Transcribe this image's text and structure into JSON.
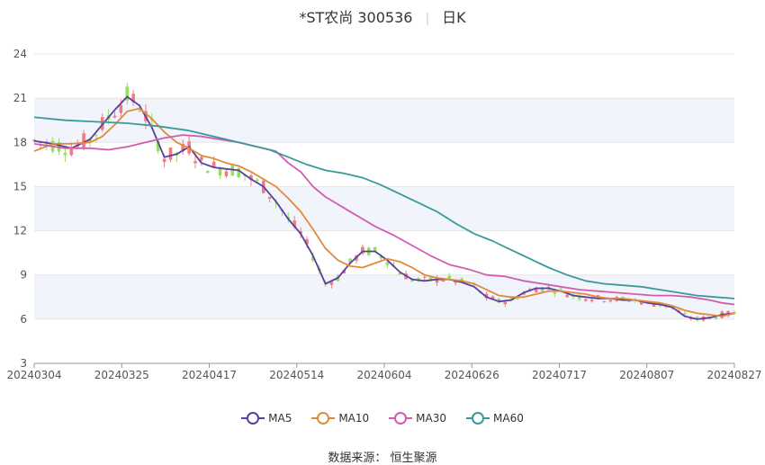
{
  "header": {
    "title": "*ST农尚 300536",
    "period": "日K"
  },
  "source": "数据来源： 恒生聚源",
  "colors": {
    "up": "#f07c82",
    "down": "#93e15b",
    "ma5": "#5b3f9e",
    "ma10": "#e28a3c",
    "ma30": "#d45bb0",
    "ma60": "#3a9a9a",
    "band": "#f1f4fb",
    "grid": "#e6e6e6"
  },
  "chart_data": {
    "type": "candlestick",
    "ylim": [
      3,
      24
    ],
    "yticks": [
      3,
      6,
      9,
      12,
      15,
      18,
      21,
      24
    ],
    "xticks": [
      "20240304",
      "20240325",
      "20240417",
      "20240514",
      "20240604",
      "20240626",
      "20240717",
      "20240807",
      "20240827"
    ],
    "legend": [
      "MA5",
      "MA10",
      "MA30",
      "MA60"
    ],
    "legend_position": "bottom",
    "series": [
      {
        "name": "MA5",
        "values": [
          [
            0,
            18.1
          ],
          [
            3,
            17.9
          ],
          [
            6,
            17.6
          ],
          [
            9,
            18.2
          ],
          [
            11,
            19.2
          ],
          [
            13,
            20.2
          ],
          [
            15,
            21.1
          ],
          [
            17,
            20.5
          ],
          [
            19,
            19.0
          ],
          [
            21,
            17.0
          ],
          [
            23,
            17.2
          ],
          [
            25,
            17.7
          ],
          [
            27,
            16.6
          ],
          [
            29,
            16.3
          ],
          [
            31,
            16.2
          ],
          [
            33,
            16.1
          ],
          [
            35,
            15.5
          ],
          [
            37,
            15.0
          ],
          [
            39,
            14.0
          ],
          [
            41,
            12.8
          ],
          [
            43,
            11.8
          ],
          [
            45,
            10.3
          ],
          [
            47,
            8.4
          ],
          [
            49,
            8.8
          ],
          [
            51,
            9.8
          ],
          [
            53,
            10.6
          ],
          [
            55,
            10.6
          ],
          [
            57,
            10.0
          ],
          [
            59,
            9.2
          ],
          [
            61,
            8.7
          ],
          [
            63,
            8.6
          ],
          [
            65,
            8.7
          ],
          [
            67,
            8.7
          ],
          [
            69,
            8.5
          ],
          [
            71,
            8.2
          ],
          [
            73,
            7.5
          ],
          [
            75,
            7.2
          ],
          [
            77,
            7.3
          ],
          [
            79,
            7.8
          ],
          [
            81,
            8.1
          ],
          [
            83,
            8.1
          ],
          [
            85,
            7.9
          ],
          [
            87,
            7.6
          ],
          [
            89,
            7.5
          ],
          [
            91,
            7.4
          ],
          [
            93,
            7.4
          ],
          [
            95,
            7.3
          ],
          [
            97,
            7.3
          ],
          [
            99,
            7.1
          ],
          [
            101,
            7.0
          ],
          [
            103,
            6.8
          ],
          [
            105,
            6.2
          ],
          [
            107,
            6.0
          ],
          [
            109,
            6.1
          ],
          [
            111,
            6.3
          ],
          [
            113,
            6.4
          ]
        ]
      },
      {
        "name": "MA10",
        "values": [
          [
            0,
            17.4
          ],
          [
            3,
            17.9
          ],
          [
            6,
            17.9
          ],
          [
            9,
            18.0
          ],
          [
            11,
            18.4
          ],
          [
            13,
            19.2
          ],
          [
            15,
            20.1
          ],
          [
            17,
            20.3
          ],
          [
            19,
            19.6
          ],
          [
            21,
            18.7
          ],
          [
            23,
            18.0
          ],
          [
            25,
            17.6
          ],
          [
            27,
            17.1
          ],
          [
            29,
            16.9
          ],
          [
            31,
            16.6
          ],
          [
            33,
            16.4
          ],
          [
            35,
            16.0
          ],
          [
            37,
            15.5
          ],
          [
            39,
            15.0
          ],
          [
            41,
            14.2
          ],
          [
            43,
            13.3
          ],
          [
            45,
            12.1
          ],
          [
            47,
            10.8
          ],
          [
            49,
            10.0
          ],
          [
            51,
            9.6
          ],
          [
            53,
            9.5
          ],
          [
            55,
            9.8
          ],
          [
            57,
            10.1
          ],
          [
            59,
            9.9
          ],
          [
            61,
            9.5
          ],
          [
            63,
            9.0
          ],
          [
            65,
            8.8
          ],
          [
            67,
            8.7
          ],
          [
            69,
            8.6
          ],
          [
            71,
            8.4
          ],
          [
            73,
            8.0
          ],
          [
            75,
            7.6
          ],
          [
            77,
            7.5
          ],
          [
            79,
            7.5
          ],
          [
            81,
            7.7
          ],
          [
            83,
            7.9
          ],
          [
            85,
            7.9
          ],
          [
            87,
            7.8
          ],
          [
            89,
            7.7
          ],
          [
            91,
            7.5
          ],
          [
            93,
            7.4
          ],
          [
            95,
            7.4
          ],
          [
            97,
            7.3
          ],
          [
            99,
            7.2
          ],
          [
            101,
            7.1
          ],
          [
            103,
            6.9
          ],
          [
            105,
            6.6
          ],
          [
            107,
            6.4
          ],
          [
            109,
            6.3
          ],
          [
            111,
            6.2
          ],
          [
            113,
            6.4
          ]
        ]
      },
      {
        "name": "MA30",
        "values": [
          [
            0,
            17.9
          ],
          [
            5,
            17.6
          ],
          [
            9,
            17.6
          ],
          [
            12,
            17.5
          ],
          [
            15,
            17.7
          ],
          [
            18,
            18.0
          ],
          [
            21,
            18.3
          ],
          [
            24,
            18.5
          ],
          [
            27,
            18.4
          ],
          [
            30,
            18.2
          ],
          [
            33,
            18.0
          ],
          [
            36,
            17.7
          ],
          [
            39,
            17.4
          ],
          [
            41,
            16.6
          ],
          [
            43,
            16.0
          ],
          [
            45,
            15.0
          ],
          [
            47,
            14.3
          ],
          [
            49,
            13.8
          ],
          [
            51,
            13.3
          ],
          [
            53,
            12.8
          ],
          [
            55,
            12.3
          ],
          [
            58,
            11.7
          ],
          [
            61,
            11.0
          ],
          [
            64,
            10.3
          ],
          [
            67,
            9.7
          ],
          [
            70,
            9.4
          ],
          [
            73,
            9.0
          ],
          [
            76,
            8.9
          ],
          [
            79,
            8.6
          ],
          [
            82,
            8.4
          ],
          [
            85,
            8.2
          ],
          [
            88,
            8.0
          ],
          [
            91,
            7.9
          ],
          [
            94,
            7.8
          ],
          [
            97,
            7.7
          ],
          [
            100,
            7.6
          ],
          [
            103,
            7.6
          ],
          [
            106,
            7.5
          ],
          [
            109,
            7.3
          ],
          [
            111,
            7.1
          ],
          [
            113,
            7.0
          ]
        ]
      },
      {
        "name": "MA60",
        "values": [
          [
            0,
            19.7
          ],
          [
            5,
            19.5
          ],
          [
            10,
            19.4
          ],
          [
            15,
            19.3
          ],
          [
            20,
            19.1
          ],
          [
            25,
            18.8
          ],
          [
            30,
            18.3
          ],
          [
            35,
            17.8
          ],
          [
            38,
            17.5
          ],
          [
            41,
            17.0
          ],
          [
            44,
            16.5
          ],
          [
            47,
            16.1
          ],
          [
            50,
            15.9
          ],
          [
            53,
            15.6
          ],
          [
            56,
            15.1
          ],
          [
            59,
            14.5
          ],
          [
            62,
            13.9
          ],
          [
            65,
            13.3
          ],
          [
            68,
            12.5
          ],
          [
            71,
            11.8
          ],
          [
            74,
            11.3
          ],
          [
            77,
            10.7
          ],
          [
            80,
            10.1
          ],
          [
            83,
            9.5
          ],
          [
            86,
            9.0
          ],
          [
            89,
            8.6
          ],
          [
            92,
            8.4
          ],
          [
            95,
            8.3
          ],
          [
            98,
            8.2
          ],
          [
            101,
            8.0
          ],
          [
            104,
            7.8
          ],
          [
            107,
            7.6
          ],
          [
            110,
            7.5
          ],
          [
            113,
            7.4
          ]
        ]
      }
    ]
  }
}
